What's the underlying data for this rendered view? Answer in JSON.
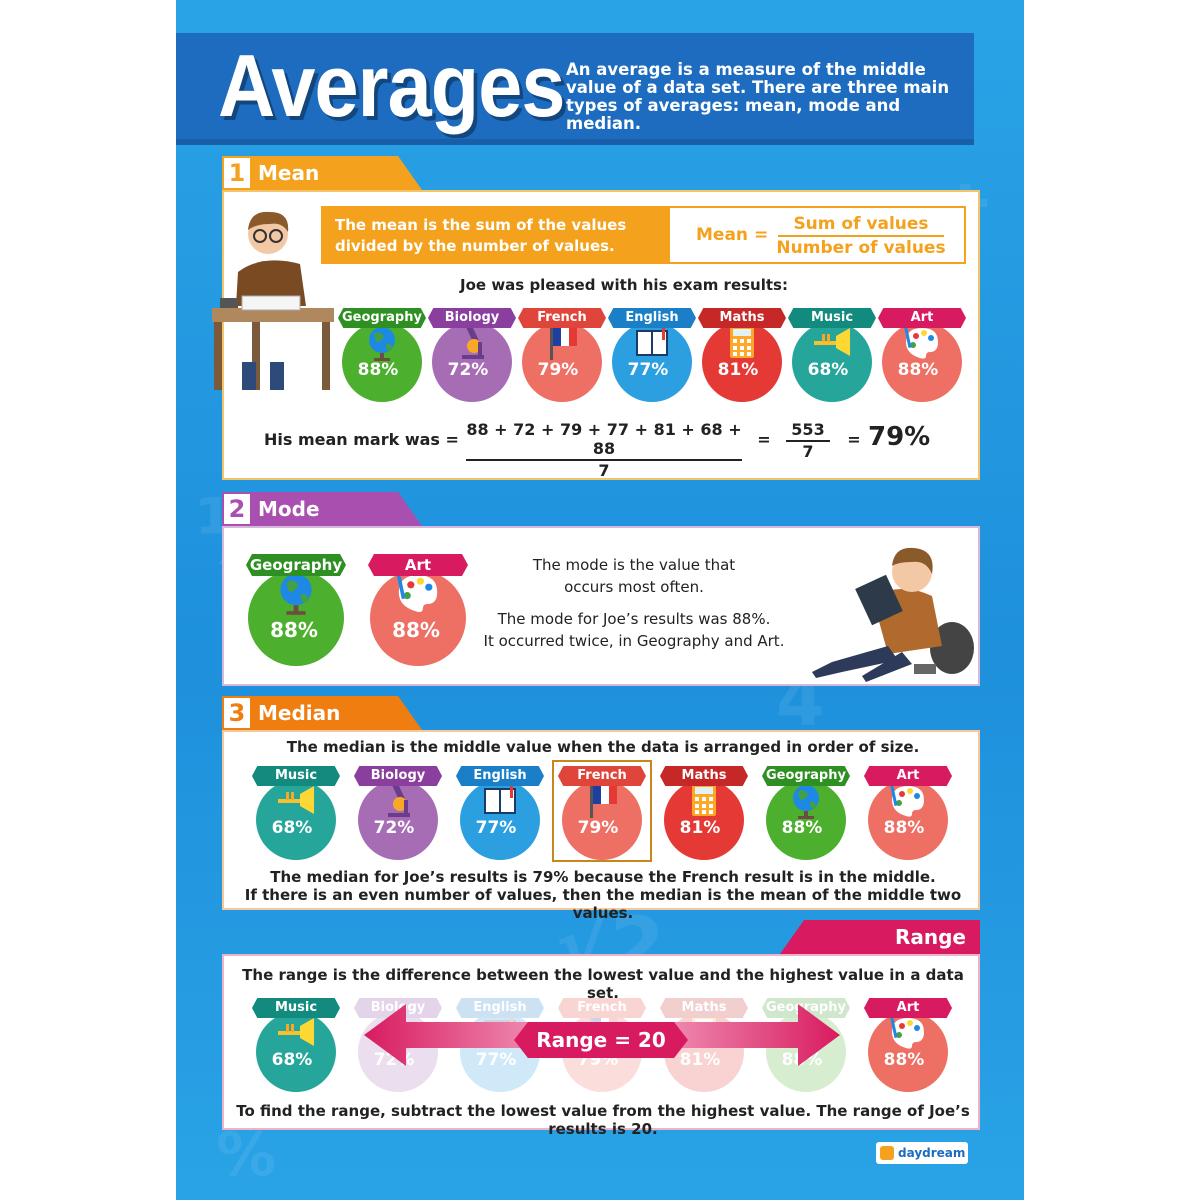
{
  "header": {
    "title": "Averages",
    "intro": "An average is a measure of the middle value of a data set. There are three main types of averages: mean, mode and median."
  },
  "colors": {
    "background": "#1e90dc",
    "header": "#1d6cc0",
    "mean": "#f4a21d",
    "mode": "#a84fb0",
    "median": "#f07d10",
    "range": "#d81b60"
  },
  "subjects": {
    "geography": {
      "name": "Geography",
      "value": "88%",
      "color": "#4caf2e",
      "label_color": "#2e8f22",
      "icon": "globe-icon"
    },
    "biology": {
      "name": "Biology",
      "value": "72%",
      "color": "#a66db5",
      "label_color": "#8a3f9e",
      "icon": "microscope-icon"
    },
    "french": {
      "name": "French",
      "value": "79%",
      "color": "#ee6f63",
      "label_color": "#e0453c",
      "icon": "flag-icon"
    },
    "english": {
      "name": "English",
      "value": "77%",
      "color": "#2c9fe0",
      "label_color": "#1a7fc6",
      "icon": "book-icon"
    },
    "maths": {
      "name": "Maths",
      "value": "81%",
      "color": "#e53935",
      "label_color": "#c62828",
      "icon": "calculator-icon"
    },
    "music": {
      "name": "Music",
      "value": "68%",
      "color": "#26a69a",
      "label_color": "#138a7e",
      "icon": "trumpet-icon"
    },
    "art": {
      "name": "Art",
      "value": "88%",
      "color": "#ee6f63",
      "label_color": "#d81b60",
      "icon": "palette-icon"
    }
  },
  "mean": {
    "number": "1",
    "title": "Mean",
    "definition": "The mean is the sum of the values divided by the number of values.",
    "formula_lhs": "Mean =",
    "formula_numerator": "Sum of values",
    "formula_denominator": "Number of values",
    "intro": "Joe was pleased with his exam results:",
    "calc_label": "His mean mark was =",
    "calc_numerator": "88 + 72 + 79 + 77 + 81 + 68 + 88",
    "calc_denominator": "7",
    "equals1": "=",
    "sum": "553",
    "count": "7",
    "equals2": "=",
    "result": "79%"
  },
  "mode": {
    "number": "2",
    "title": "Mode",
    "line1": "The mode is the value that",
    "line2": "occurs most often.",
    "line3": "The mode for Joe’s results was 88%.",
    "line4": "It occurred twice, in Geography and Art."
  },
  "median": {
    "number": "3",
    "title": "Median",
    "intro": "The median is the middle value when the data is arranged in order of size.",
    "outro1": "The median for Joe’s results is 79% because the French result is in the middle.",
    "outro2": "If there is an even number of values, then the median is the mean of the middle two values."
  },
  "range": {
    "title": "Range",
    "intro": "The range is the difference between the lowest value and the highest value in a data set.",
    "label": "Range = 20",
    "outro": "To find the range, subtract the lowest value from the highest value. The range of Joe’s results is 20."
  },
  "footer": {
    "brand": "daydream"
  }
}
